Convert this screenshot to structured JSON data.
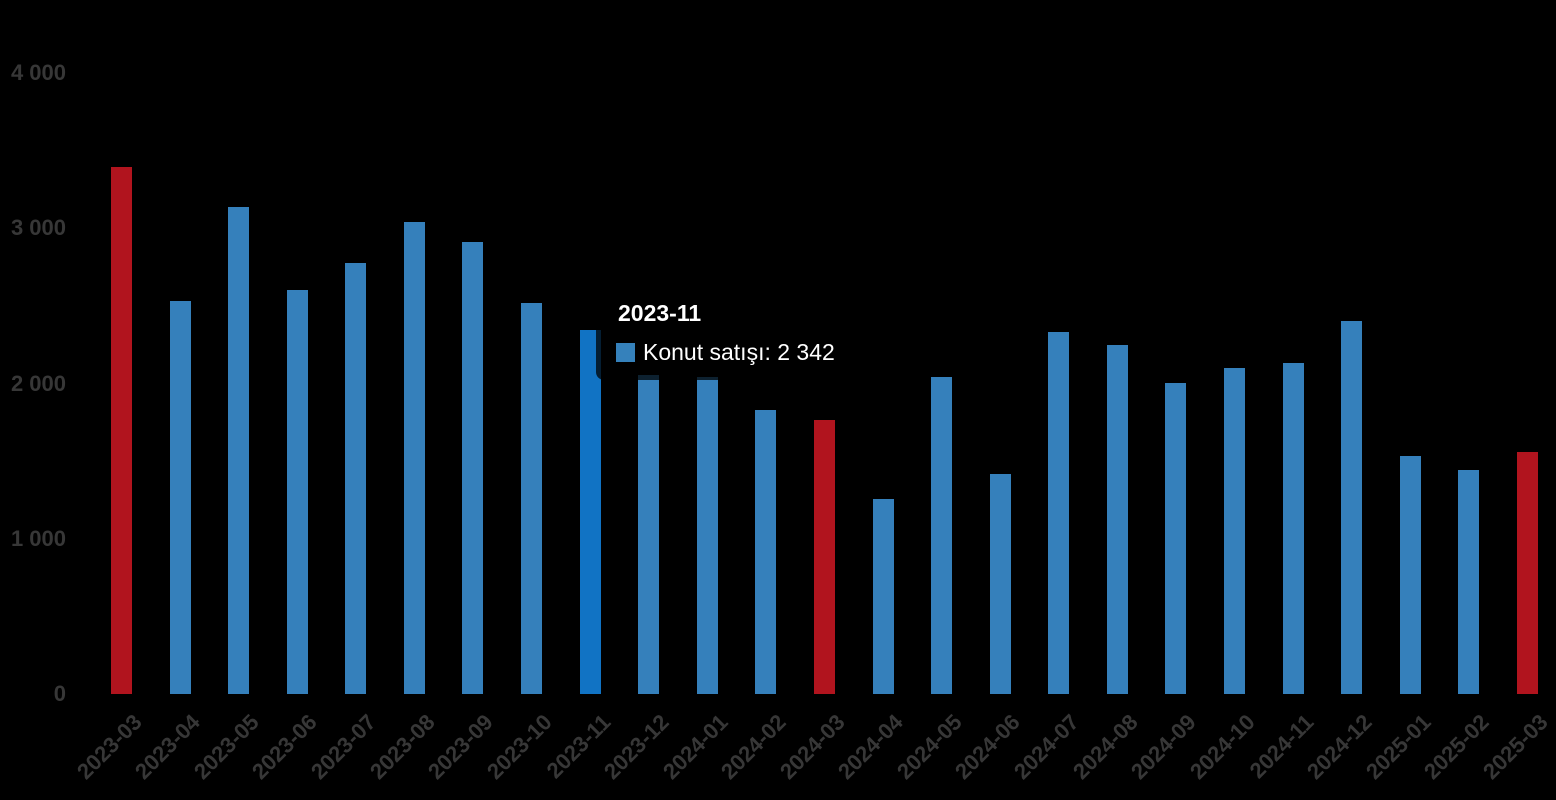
{
  "background": "#000000",
  "chart_data": {
    "type": "bar",
    "title": "",
    "xlabel": "",
    "ylabel": "",
    "legend_position": "none",
    "grid": false,
    "ylim": [
      0,
      4000
    ],
    "yticks": [
      {
        "value": 0,
        "label": "0"
      },
      {
        "value": 1000,
        "label": "1 000"
      },
      {
        "value": 2000,
        "label": "2 000"
      },
      {
        "value": 3000,
        "label": "3 000"
      },
      {
        "value": 4000,
        "label": "4 000"
      }
    ],
    "categories": [
      "2023-03",
      "2023-04",
      "2023-05",
      "2023-06",
      "2023-07",
      "2023-08",
      "2023-09",
      "2023-10",
      "2023-11",
      "2023-12",
      "2024-01",
      "2024-02",
      "2024-03",
      "2024-04",
      "2024-05",
      "2024-06",
      "2024-07",
      "2024-08",
      "2024-09",
      "2024-10",
      "2024-11",
      "2024-12",
      "2025-01",
      "2025-02",
      "2025-03"
    ],
    "series": [
      {
        "name": "Konut satışı",
        "values": [
          3395,
          2530,
          3140,
          2605,
          2775,
          3040,
          2910,
          2520,
          2342,
          2055,
          2040,
          1830,
          1765,
          1255,
          2045,
          1420,
          2330,
          2245,
          2005,
          2100,
          2135,
          2400,
          1535,
          1440,
          1560
        ]
      }
    ],
    "highlighted_category": "2023-11",
    "highlighted_index": 8,
    "red_indices": [
      0,
      12,
      24
    ],
    "colors": {
      "bar_blue": "#3580BB",
      "bar_highlight": "#1173C4",
      "bar_red": "#B1141E",
      "axis_text": "#373737",
      "tooltip_text": "#FFFFFF",
      "tooltip_marker": "#3581BB",
      "background": "#000000"
    }
  },
  "tooltip": {
    "title": "2023-11",
    "series_name": "Konut satışı",
    "value": "2 342",
    "text": "Konut satışı: 2 342"
  }
}
